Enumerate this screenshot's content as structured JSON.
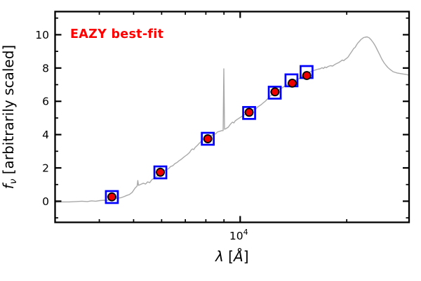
{
  "figure": {
    "background": "#ffffff",
    "annotation": {
      "text": "EAZY best-fit",
      "color": "#ff0000"
    }
  },
  "chart_data": {
    "type": "line",
    "title": "",
    "x_scale": "log",
    "xlim": [
      3000,
      30000
    ],
    "ylim": [
      -1.27,
      11.39
    ],
    "grid": false,
    "legend": "none",
    "xlabel_parts": [
      {
        "t": "λ",
        "style": "italic"
      },
      {
        "t": " [",
        "style": "normal"
      },
      {
        "t": "Å",
        "style": "italic"
      },
      {
        "t": "]",
        "style": "normal"
      }
    ],
    "ylabel_parts": [
      {
        "t": "f",
        "style": "italic"
      },
      {
        "t": "ν",
        "style": "sub-italic"
      },
      {
        "t": " [arbitrarily scaled]",
        "style": "normal"
      }
    ],
    "x_ticks": {
      "major": [
        {
          "value": 10000,
          "mantissa": "10",
          "exponent": "4"
        }
      ],
      "minor": [
        4000,
        5000,
        6000,
        7000,
        8000,
        9000,
        20000,
        30000
      ]
    },
    "y_ticks": {
      "major": [
        {
          "value": 0,
          "label": "0"
        },
        {
          "value": 2,
          "label": "2"
        },
        {
          "value": 4,
          "label": "4"
        },
        {
          "value": 6,
          "label": "6"
        },
        {
          "value": 8,
          "label": "8"
        },
        {
          "value": 10,
          "label": "10"
        }
      ],
      "minor": [
        -1,
        1,
        3,
        5,
        7,
        9,
        11
      ]
    },
    "series": [
      {
        "name": "eazy-model-spectrum",
        "type": "line",
        "color": "#a9a9a9",
        "linewidth": 1.4,
        "points": [
          [
            3001,
            -0.06
          ],
          [
            3141,
            -0.04
          ],
          [
            3287,
            -0.04
          ],
          [
            3441,
            -0.02
          ],
          [
            3569,
            0.0
          ],
          [
            3701,
            -0.02
          ],
          [
            3803,
            0.02
          ],
          [
            3908,
            0.0
          ],
          [
            4018,
            0.04
          ],
          [
            4128,
            0.06
          ],
          [
            4205,
            0.04
          ],
          [
            4283,
            0.11
          ],
          [
            4361,
            0.15
          ],
          [
            4441,
            0.17
          ],
          [
            4523,
            0.19
          ],
          [
            4607,
            0.21
          ],
          [
            4691,
            0.27
          ],
          [
            4777,
            0.34
          ],
          [
            4865,
            0.4
          ],
          [
            4954,
            0.53
          ],
          [
            5045,
            0.78
          ],
          [
            5115,
            0.91
          ],
          [
            5138,
            1.24
          ],
          [
            5161,
            0.95
          ],
          [
            5233,
            1.01
          ],
          [
            5329,
            1.08
          ],
          [
            5402,
            1.03
          ],
          [
            5477,
            1.16
          ],
          [
            5552,
            1.12
          ],
          [
            5629,
            1.29
          ],
          [
            5706,
            1.37
          ],
          [
            5784,
            1.46
          ],
          [
            5864,
            1.54
          ],
          [
            5944,
            1.65
          ],
          [
            6026,
            1.75
          ],
          [
            6109,
            1.84
          ],
          [
            6193,
            1.9
          ],
          [
            6278,
            1.96
          ],
          [
            6364,
            2.09
          ],
          [
            6452,
            2.13
          ],
          [
            6540,
            2.26
          ],
          [
            6630,
            2.32
          ],
          [
            6721,
            2.43
          ],
          [
            6814,
            2.51
          ],
          [
            6907,
            2.62
          ],
          [
            7002,
            2.72
          ],
          [
            7098,
            2.81
          ],
          [
            7195,
            2.93
          ],
          [
            7261,
            3.06
          ],
          [
            7328,
            3.14
          ],
          [
            7395,
            3.1
          ],
          [
            7462,
            3.23
          ],
          [
            7565,
            3.35
          ],
          [
            7669,
            3.48
          ],
          [
            7774,
            3.61
          ],
          [
            7881,
            3.73
          ],
          [
            7989,
            3.78
          ],
          [
            8099,
            3.8
          ],
          [
            8210,
            3.9
          ],
          [
            8322,
            3.95
          ],
          [
            8437,
            4.07
          ],
          [
            8514,
            4.03
          ],
          [
            8631,
            4.16
          ],
          [
            8750,
            4.2
          ],
          [
            8870,
            4.24
          ],
          [
            8952,
            4.24
          ],
          [
            8993,
            7.95
          ],
          [
            9034,
            4.32
          ],
          [
            9117,
            4.36
          ],
          [
            9253,
            4.45
          ],
          [
            9380,
            4.62
          ],
          [
            9510,
            4.75
          ],
          [
            9598,
            4.7
          ],
          [
            9685,
            4.83
          ],
          [
            9819,
            4.92
          ],
          [
            9954,
            5.0
          ],
          [
            10092,
            5.08
          ],
          [
            10231,
            5.17
          ],
          [
            10371,
            5.25
          ],
          [
            10514,
            5.32
          ],
          [
            10658,
            5.38
          ],
          [
            10805,
            5.46
          ],
          [
            10954,
            5.55
          ],
          [
            11055,
            5.51
          ],
          [
            11156,
            5.63
          ],
          [
            11310,
            5.72
          ],
          [
            11465,
            5.8
          ],
          [
            11623,
            5.91
          ],
          [
            11782,
            6.01
          ],
          [
            11944,
            6.14
          ],
          [
            12110,
            6.27
          ],
          [
            12275,
            6.39
          ],
          [
            12444,
            6.5
          ],
          [
            12616,
            6.58
          ],
          [
            12789,
            6.65
          ],
          [
            12965,
            6.73
          ],
          [
            13143,
            6.81
          ],
          [
            13323,
            6.9
          ],
          [
            13507,
            6.98
          ],
          [
            13692,
            7.05
          ],
          [
            13881,
            7.11
          ],
          [
            14071,
            7.17
          ],
          [
            14265,
            7.24
          ],
          [
            14461,
            7.3
          ],
          [
            14659,
            7.36
          ],
          [
            14861,
            7.45
          ],
          [
            15065,
            7.53
          ],
          [
            15273,
            7.62
          ],
          [
            15482,
            7.68
          ],
          [
            15695,
            7.74
          ],
          [
            15911,
            7.81
          ],
          [
            16129,
            7.85
          ],
          [
            16351,
            7.89
          ],
          [
            16576,
            7.93
          ],
          [
            16803,
            7.95
          ],
          [
            17034,
            8.02
          ],
          [
            17190,
            7.97
          ],
          [
            17347,
            8.06
          ],
          [
            17505,
            8.02
          ],
          [
            17746,
            8.1
          ],
          [
            17990,
            8.14
          ],
          [
            18238,
            8.12
          ],
          [
            18489,
            8.21
          ],
          [
            18743,
            8.27
          ],
          [
            19001,
            8.33
          ],
          [
            19262,
            8.42
          ],
          [
            19439,
            8.48
          ],
          [
            19617,
            8.44
          ],
          [
            19798,
            8.52
          ],
          [
            20000,
            8.59
          ],
          [
            20184,
            8.67
          ],
          [
            20369,
            8.8
          ],
          [
            20556,
            8.92
          ],
          [
            20745,
            9.05
          ],
          [
            20935,
            9.18
          ],
          [
            21128,
            9.24
          ],
          [
            21322,
            9.39
          ],
          [
            21518,
            9.51
          ],
          [
            21716,
            9.6
          ],
          [
            21915,
            9.7
          ],
          [
            22117,
            9.77
          ],
          [
            22320,
            9.83
          ],
          [
            22525,
            9.85
          ],
          [
            22835,
            9.87
          ],
          [
            23149,
            9.81
          ],
          [
            23467,
            9.68
          ],
          [
            23789,
            9.51
          ],
          [
            24116,
            9.3
          ],
          [
            24448,
            9.05
          ],
          [
            24784,
            8.8
          ],
          [
            25125,
            8.54
          ],
          [
            25470,
            8.33
          ],
          [
            25820,
            8.16
          ],
          [
            26175,
            8.02
          ],
          [
            26535,
            7.91
          ],
          [
            26777,
            7.85
          ],
          [
            27021,
            7.78
          ],
          [
            27393,
            7.74
          ],
          [
            27769,
            7.7
          ],
          [
            28151,
            7.68
          ],
          [
            28538,
            7.66
          ],
          [
            28930,
            7.64
          ],
          [
            29328,
            7.62
          ],
          [
            30000,
            7.57
          ]
        ]
      },
      {
        "name": "model-photometry",
        "type": "scatter",
        "marker": "open-square",
        "color": "#0000ff",
        "size": 17,
        "points": [
          [
            4340,
            0.25
          ],
          [
            5950,
            1.73
          ],
          [
            8100,
            3.75
          ],
          [
            10600,
            5.3
          ],
          [
            12520,
            6.52
          ],
          [
            13960,
            7.26
          ],
          [
            15400,
            7.76
          ]
        ]
      },
      {
        "name": "observed-photometry",
        "type": "scatter",
        "marker": "filled-circle",
        "color": "#ee0000",
        "edge_color": "#000000",
        "xerr_frac": 0.03,
        "size": 11,
        "points": [
          [
            4340,
            0.26
          ],
          [
            5950,
            1.74
          ],
          [
            8100,
            3.75
          ],
          [
            10600,
            5.34
          ],
          [
            12540,
            6.57
          ],
          [
            14030,
            7.09
          ],
          [
            15420,
            7.55
          ]
        ]
      }
    ]
  }
}
